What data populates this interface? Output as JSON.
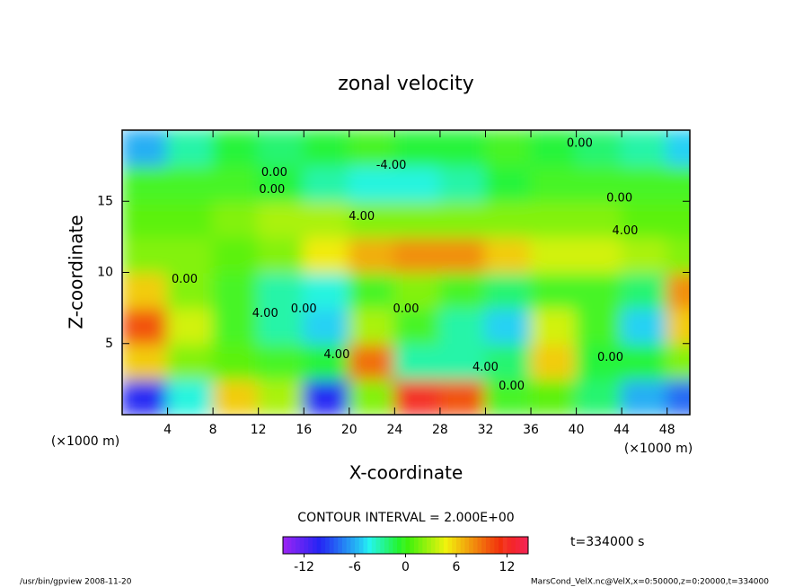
{
  "chart_data": {
    "type": "contour",
    "title": "zonal velocity",
    "xlabel": "X-coordinate",
    "ylabel": "Z-coordinate",
    "xunit": "(×1000 m)",
    "xunit_right": "(×1000 m)",
    "xlim": [
      0,
      50
    ],
    "ylim": [
      0,
      20
    ],
    "xticks": [
      4,
      8,
      12,
      16,
      20,
      24,
      28,
      32,
      36,
      40,
      44,
      48
    ],
    "yticks": [
      5,
      10,
      15
    ],
    "x": [
      2,
      6,
      10,
      14,
      18,
      22,
      26,
      30,
      34,
      38,
      42,
      46,
      50
    ],
    "z": [
      1.25,
      3.75,
      6.25,
      8.75,
      11.25,
      13.75,
      16.25,
      18.75
    ],
    "values": [
      [
        -10,
        -4,
        6,
        3,
        -10,
        2,
        12,
        10,
        0,
        1,
        -2,
        -6,
        -8
      ],
      [
        6,
        2,
        1,
        0,
        -1,
        9,
        -3,
        -3,
        -2,
        6,
        -1,
        -1,
        2
      ],
      [
        10,
        4,
        0,
        -3,
        -5,
        3,
        0,
        -3,
        -5,
        4,
        0,
        -5,
        6
      ],
      [
        6,
        2,
        0,
        -3,
        -4,
        0,
        2,
        0,
        -2,
        0,
        0,
        -2,
        8
      ],
      [
        2,
        2,
        1,
        2,
        5,
        7,
        8,
        8,
        6,
        4,
        4,
        3,
        2
      ],
      [
        1,
        1,
        2,
        3,
        3,
        2,
        2,
        2,
        2,
        2,
        2,
        1,
        1
      ],
      [
        0,
        0,
        0,
        -1,
        -3,
        -4,
        -4,
        -3,
        -1,
        0,
        0,
        0,
        0
      ],
      [
        -6,
        -3,
        -1,
        -2,
        -1,
        0,
        -1,
        -1,
        0,
        -1,
        -2,
        -3,
        -5
      ]
    ],
    "contour_labels": [
      {
        "text": "0.00",
        "x": 40.3,
        "z": 19.05
      },
      {
        "text": "-4.00",
        "x": 23.7,
        "z": 17.5
      },
      {
        "text": "0.00",
        "x": 13.4,
        "z": 17.0
      },
      {
        "text": "0.00",
        "x": 13.2,
        "z": 15.8
      },
      {
        "text": "0.00",
        "x": 43.8,
        "z": 15.2
      },
      {
        "text": "4.00",
        "x": 21.1,
        "z": 13.9
      },
      {
        "text": "4.00",
        "x": 44.3,
        "z": 12.9
      },
      {
        "text": "0.00",
        "x": 5.5,
        "z": 9.5
      },
      {
        "text": "0.00",
        "x": 16,
        "z": 7.4
      },
      {
        "text": "4.00",
        "x": 12.6,
        "z": 7.1
      },
      {
        "text": "0.00",
        "x": 25,
        "z": 7.4
      },
      {
        "text": "4.00",
        "x": 18.9,
        "z": 4.2
      },
      {
        "text": "4.00",
        "x": 32,
        "z": 3.3
      },
      {
        "text": "0.00",
        "x": 34.3,
        "z": 2
      },
      {
        "text": "0.00",
        "x": 43,
        "z": 4
      }
    ],
    "contour_interval": "CONTOUR INTERVAL = 2.000E+00",
    "time": "t=334000 s",
    "colorbar": {
      "lim": [
        -14.5,
        14.5
      ],
      "ticks": [
        -12,
        -6,
        0,
        6,
        12
      ]
    },
    "footer_left": "/usr/bin/gpview  2008-11-20",
    "footer_right": "MarsCond_VelX.nc@VelX,x=0:50000,z=0:20000,t=334000"
  }
}
